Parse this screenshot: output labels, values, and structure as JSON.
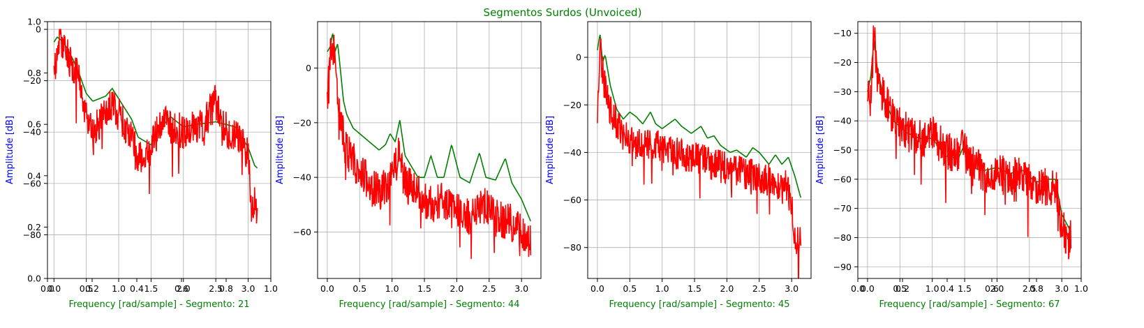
{
  "figure": {
    "title": "Segmentos Surdos (Unvoiced)"
  },
  "colors": {
    "envelope": "#008000",
    "spectrum": "#ff0000",
    "title": "#008000",
    "ylabel": "#0000ff",
    "xlabel": "#008000"
  },
  "chart_data": [
    {
      "type": "line",
      "xlabel": "Frequency [rad/sample] - Segmento: 21",
      "ylabel": "Amplitude [dB]",
      "xlim": [
        -0.1,
        3.35
      ],
      "ylim": [
        -97,
        3
      ],
      "xticks": [
        0.0,
        0.5,
        1.0,
        1.5,
        2.0,
        2.5,
        3.0
      ],
      "yticks": [
        0,
        -20,
        -40,
        -60,
        -80
      ],
      "overlay_ticks": {
        "x": [
          "0.0",
          "0.2",
          "0.4",
          "0.6",
          "0.8",
          "1.0"
        ],
        "y": [
          "0.0",
          "0.2",
          "0.4",
          "0.6",
          "0.8",
          "1.0"
        ]
      },
      "series": [
        {
          "values": [
            [
              0,
              -5
            ],
            [
              0.05,
              -3
            ],
            [
              0.15,
              -5
            ],
            [
              0.3,
              -12
            ],
            [
              0.4,
              -18
            ],
            [
              0.5,
              -25
            ],
            [
              0.6,
              -28
            ],
            [
              0.8,
              -26
            ],
            [
              0.9,
              -23
            ],
            [
              1.0,
              -27
            ],
            [
              1.2,
              -35
            ],
            [
              1.3,
              -42
            ],
            [
              1.5,
              -45
            ],
            [
              1.6,
              -40
            ],
            [
              1.8,
              -34
            ],
            [
              2.0,
              -38
            ],
            [
              2.2,
              -37
            ],
            [
              2.5,
              -36
            ],
            [
              2.8,
              -38
            ],
            [
              3.0,
              -46
            ],
            [
              3.1,
              -53
            ],
            [
              3.14,
              -54
            ]
          ]
        },
        {
          "seed": 21,
          "values": [
            [
              0,
              -20
            ],
            [
              0.05,
              -8
            ],
            [
              0.1,
              -5
            ],
            [
              0.2,
              -10
            ],
            [
              0.3,
              -14
            ],
            [
              0.4,
              -20
            ],
            [
              0.5,
              -35
            ],
            [
              0.6,
              -40
            ],
            [
              0.8,
              -32
            ],
            [
              0.9,
              -28
            ],
            [
              1.0,
              -33
            ],
            [
              1.2,
              -42
            ],
            [
              1.3,
              -50
            ],
            [
              1.5,
              -46
            ],
            [
              1.7,
              -34
            ],
            [
              1.8,
              -38
            ],
            [
              2.0,
              -40
            ],
            [
              2.3,
              -37
            ],
            [
              2.5,
              -28
            ],
            [
              2.6,
              -37
            ],
            [
              2.8,
              -42
            ],
            [
              3.0,
              -48
            ],
            [
              3.05,
              -70
            ],
            [
              3.1,
              -68
            ],
            [
              3.14,
              -69
            ]
          ]
        }
      ]
    },
    {
      "type": "line",
      "xlabel": "Frequency [rad/sample] - Segmento: 44",
      "ylabel": "Amplitude [dB]",
      "xlim": [
        -0.15,
        3.3
      ],
      "ylim": [
        -77,
        17
      ],
      "xticks": [
        0.0,
        0.5,
        1.0,
        1.5,
        2.0,
        2.5,
        3.0
      ],
      "yticks": [
        0,
        -20,
        -40,
        -60
      ],
      "series": [
        {
          "values": [
            [
              0,
              6
            ],
            [
              0.05,
              8
            ],
            [
              0.08,
              13
            ],
            [
              0.12,
              6
            ],
            [
              0.16,
              9
            ],
            [
              0.2,
              0
            ],
            [
              0.25,
              -12
            ],
            [
              0.3,
              -17
            ],
            [
              0.4,
              -22
            ],
            [
              0.6,
              -26
            ],
            [
              0.8,
              -30
            ],
            [
              0.9,
              -28
            ],
            [
              0.97,
              -24
            ],
            [
              1.05,
              -27
            ],
            [
              1.12,
              -19
            ],
            [
              1.2,
              -32
            ],
            [
              1.4,
              -40
            ],
            [
              1.5,
              -40
            ],
            [
              1.6,
              -32
            ],
            [
              1.7,
              -40
            ],
            [
              1.8,
              -40
            ],
            [
              1.92,
              -28
            ],
            [
              2.05,
              -40
            ],
            [
              2.2,
              -42
            ],
            [
              2.35,
              -31
            ],
            [
              2.45,
              -40
            ],
            [
              2.6,
              -41
            ],
            [
              2.75,
              -33
            ],
            [
              2.85,
              -42
            ],
            [
              3.0,
              -48
            ],
            [
              3.14,
              -56
            ]
          ]
        },
        {
          "seed": 44,
          "values": [
            [
              0,
              -10
            ],
            [
              0.05,
              5
            ],
            [
              0.1,
              8
            ],
            [
              0.15,
              -5
            ],
            [
              0.2,
              -20
            ],
            [
              0.3,
              -30
            ],
            [
              0.5,
              -38
            ],
            [
              0.8,
              -46
            ],
            [
              1.0,
              -40
            ],
            [
              1.1,
              -32
            ],
            [
              1.2,
              -42
            ],
            [
              1.4,
              -46
            ],
            [
              1.6,
              -50
            ],
            [
              1.8,
              -48
            ],
            [
              2.0,
              -52
            ],
            [
              2.2,
              -55
            ],
            [
              2.4,
              -50
            ],
            [
              2.6,
              -55
            ],
            [
              2.8,
              -56
            ],
            [
              3.0,
              -60
            ],
            [
              3.14,
              -64
            ]
          ]
        }
      ]
    },
    {
      "type": "line",
      "xlabel": "Frequency [rad/sample] - Segmento: 45",
      "ylabel": "Amplitude [dB]",
      "xlim": [
        -0.15,
        3.3
      ],
      "ylim": [
        -93,
        15
      ],
      "xticks": [
        0.0,
        0.5,
        1.0,
        1.5,
        2.0,
        2.5,
        3.0
      ],
      "yticks": [
        0,
        -20,
        -40,
        -60,
        -80
      ],
      "series": [
        {
          "values": [
            [
              0,
              3
            ],
            [
              0.04,
              10
            ],
            [
              0.08,
              -2
            ],
            [
              0.12,
              1
            ],
            [
              0.2,
              -12
            ],
            [
              0.3,
              -22
            ],
            [
              0.4,
              -26
            ],
            [
              0.5,
              -23
            ],
            [
              0.6,
              -25
            ],
            [
              0.7,
              -28
            ],
            [
              0.82,
              -23
            ],
            [
              0.9,
              -28
            ],
            [
              1.0,
              -30
            ],
            [
              1.1,
              -28
            ],
            [
              1.2,
              -26
            ],
            [
              1.3,
              -29
            ],
            [
              1.45,
              -32
            ],
            [
              1.6,
              -29
            ],
            [
              1.7,
              -34
            ],
            [
              1.8,
              -33
            ],
            [
              1.9,
              -37
            ],
            [
              2.05,
              -40
            ],
            [
              2.15,
              -39
            ],
            [
              2.3,
              -42
            ],
            [
              2.4,
              -38
            ],
            [
              2.5,
              -40
            ],
            [
              2.65,
              -45
            ],
            [
              2.75,
              -41
            ],
            [
              2.85,
              -45
            ],
            [
              2.95,
              -42
            ],
            [
              3.05,
              -50
            ],
            [
              3.14,
              -59
            ]
          ]
        },
        {
          "seed": 45,
          "values": [
            [
              0,
              -30
            ],
            [
              0.04,
              5
            ],
            [
              0.1,
              -10
            ],
            [
              0.2,
              -22
            ],
            [
              0.4,
              -33
            ],
            [
              0.6,
              -37
            ],
            [
              0.8,
              -36
            ],
            [
              1.0,
              -38
            ],
            [
              1.2,
              -40
            ],
            [
              1.5,
              -42
            ],
            [
              1.8,
              -45
            ],
            [
              2.0,
              -47
            ],
            [
              2.2,
              -48
            ],
            [
              2.5,
              -50
            ],
            [
              2.7,
              -52
            ],
            [
              2.9,
              -54
            ],
            [
              3.0,
              -60
            ],
            [
              3.05,
              -78
            ],
            [
              3.14,
              -78
            ]
          ]
        }
      ]
    },
    {
      "type": "line",
      "xlabel": "Frequency [rad/sample] - Segmento: 67",
      "ylabel": "Amplitude [dB]",
      "xlim": [
        -0.15,
        3.3
      ],
      "ylim": [
        -94,
        -6
      ],
      "xticks": [
        0.0,
        0.5,
        1.0,
        1.5,
        2.0,
        2.5,
        3.0
      ],
      "yticks": [
        -10,
        -20,
        -30,
        -40,
        -50,
        -60,
        -70,
        -80,
        -90
      ],
      "overlay_ticks": {
        "x": [
          "0.0",
          "0.2",
          "0.4",
          "0.6",
          "0.8",
          "1.0"
        ]
      },
      "series": [
        {
          "values": [
            [
              0,
              -30
            ],
            [
              0.05,
              -25
            ],
            [
              0.1,
              -12
            ],
            [
              0.15,
              -22
            ],
            [
              0.25,
              -32
            ],
            [
              0.4,
              -40
            ],
            [
              0.6,
              -44
            ],
            [
              0.8,
              -46
            ],
            [
              1.0,
              -46
            ],
            [
              1.2,
              -52
            ],
            [
              1.4,
              -53
            ],
            [
              1.5,
              -48
            ],
            [
              1.6,
              -56
            ],
            [
              1.8,
              -57
            ],
            [
              2.0,
              -56
            ],
            [
              2.2,
              -58
            ],
            [
              2.4,
              -57
            ],
            [
              2.6,
              -61
            ],
            [
              2.8,
              -60
            ],
            [
              2.9,
              -60
            ],
            [
              3.0,
              -72
            ],
            [
              3.14,
              -78
            ]
          ]
        },
        {
          "seed": 67,
          "values": [
            [
              0,
              -30
            ],
            [
              0.05,
              -32
            ],
            [
              0.1,
              -10
            ],
            [
              0.15,
              -25
            ],
            [
              0.25,
              -32
            ],
            [
              0.4,
              -40
            ],
            [
              0.6,
              -44
            ],
            [
              0.8,
              -46
            ],
            [
              1.0,
              -45
            ],
            [
              1.2,
              -50
            ],
            [
              1.4,
              -52
            ],
            [
              1.5,
              -48
            ],
            [
              1.6,
              -55
            ],
            [
              1.8,
              -58
            ],
            [
              2.0,
              -58
            ],
            [
              2.2,
              -59
            ],
            [
              2.4,
              -58
            ],
            [
              2.6,
              -62
            ],
            [
              2.8,
              -62
            ],
            [
              2.9,
              -62
            ],
            [
              3.0,
              -75
            ],
            [
              3.05,
              -80
            ],
            [
              3.14,
              -81
            ]
          ]
        }
      ]
    }
  ]
}
